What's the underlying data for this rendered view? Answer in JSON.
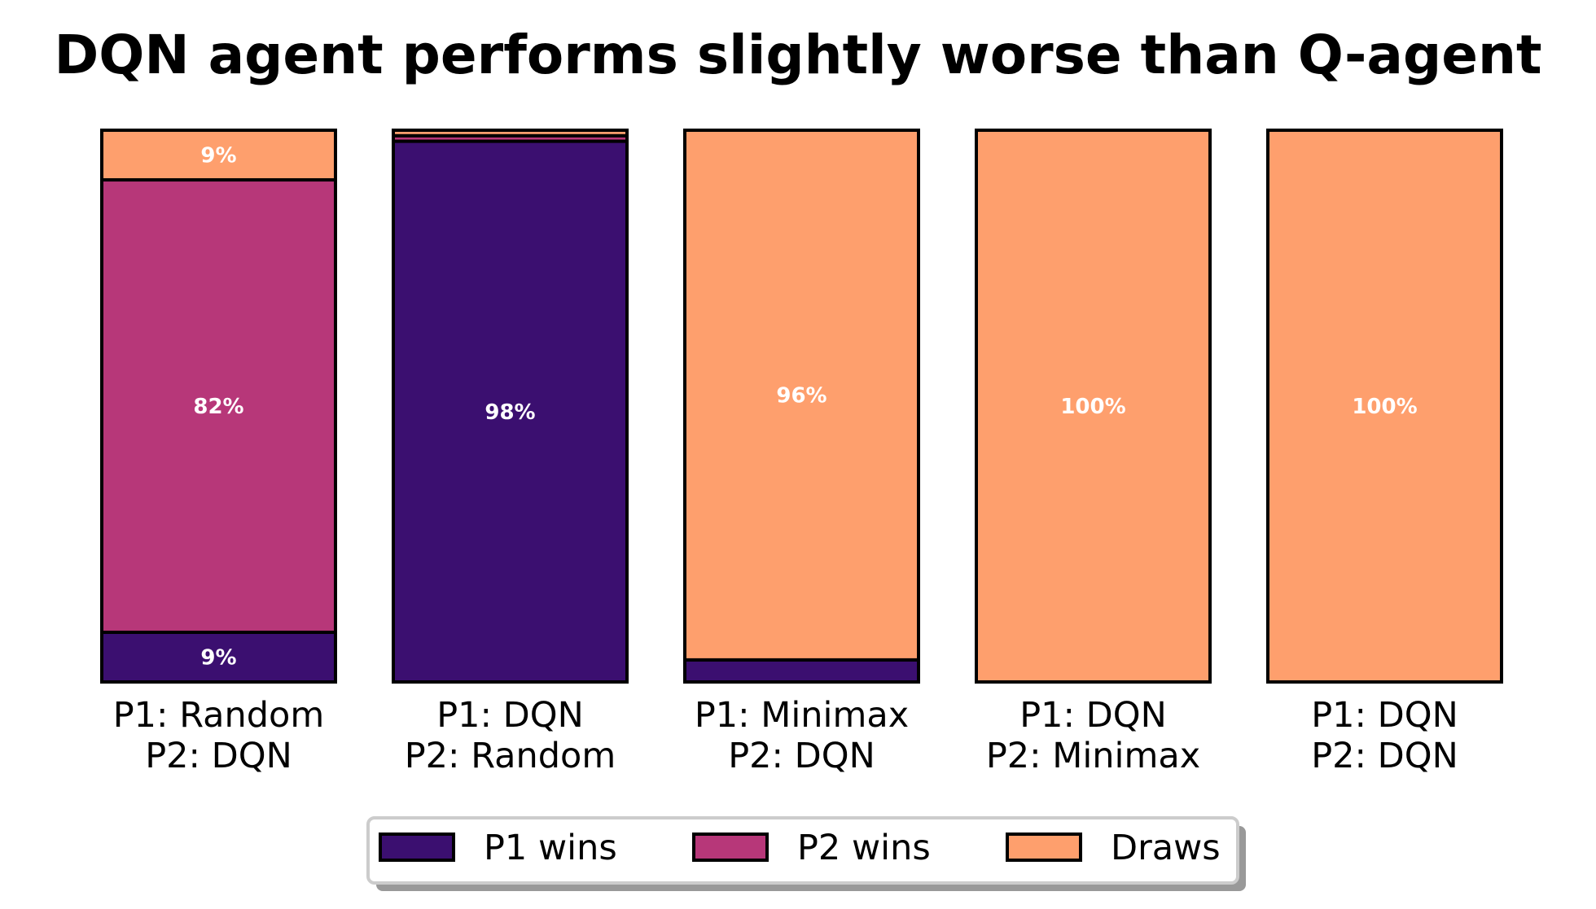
{
  "chart_data": {
    "type": "bar",
    "stacked": true,
    "normalized": true,
    "title": "DQN agent performs slightly worse than Q-agent",
    "xlabel": "",
    "ylabel": "",
    "ylim": [
      0,
      100
    ],
    "grid": false,
    "categories": [
      [
        "P1: Random",
        "P2: DQN"
      ],
      [
        "P1: DQN",
        "P2: Random"
      ],
      [
        "P1: Minimax",
        "P2: DQN"
      ],
      [
        "P1: DQN",
        "P2: Minimax"
      ],
      [
        "P1: DQN",
        "P2: DQN"
      ]
    ],
    "series": [
      {
        "name": "P1 wins",
        "color": "#3b0f70",
        "values": [
          9,
          98,
          4,
          0,
          0
        ]
      },
      {
        "name": "P2 wins",
        "color": "#b73779",
        "values": [
          82,
          1,
          0,
          0,
          0
        ]
      },
      {
        "name": "Draws",
        "color": "#fe9f6d",
        "values": [
          9,
          1,
          96,
          100,
          100
        ]
      }
    ],
    "data_labels": [
      [
        {
          "series": 0,
          "text": "9%"
        },
        {
          "series": 1,
          "text": "82%"
        },
        {
          "series": 2,
          "text": "9%"
        }
      ],
      [
        {
          "series": 0,
          "text": "98%"
        }
      ],
      [
        {
          "series": 2,
          "text": "96%"
        }
      ],
      [
        {
          "series": 2,
          "text": "100%"
        }
      ],
      [
        {
          "series": 2,
          "text": "100%"
        }
      ]
    ],
    "legend": {
      "position": "bottom-center",
      "entries": [
        "P1 wins",
        "P2 wins",
        "Draws"
      ]
    }
  }
}
